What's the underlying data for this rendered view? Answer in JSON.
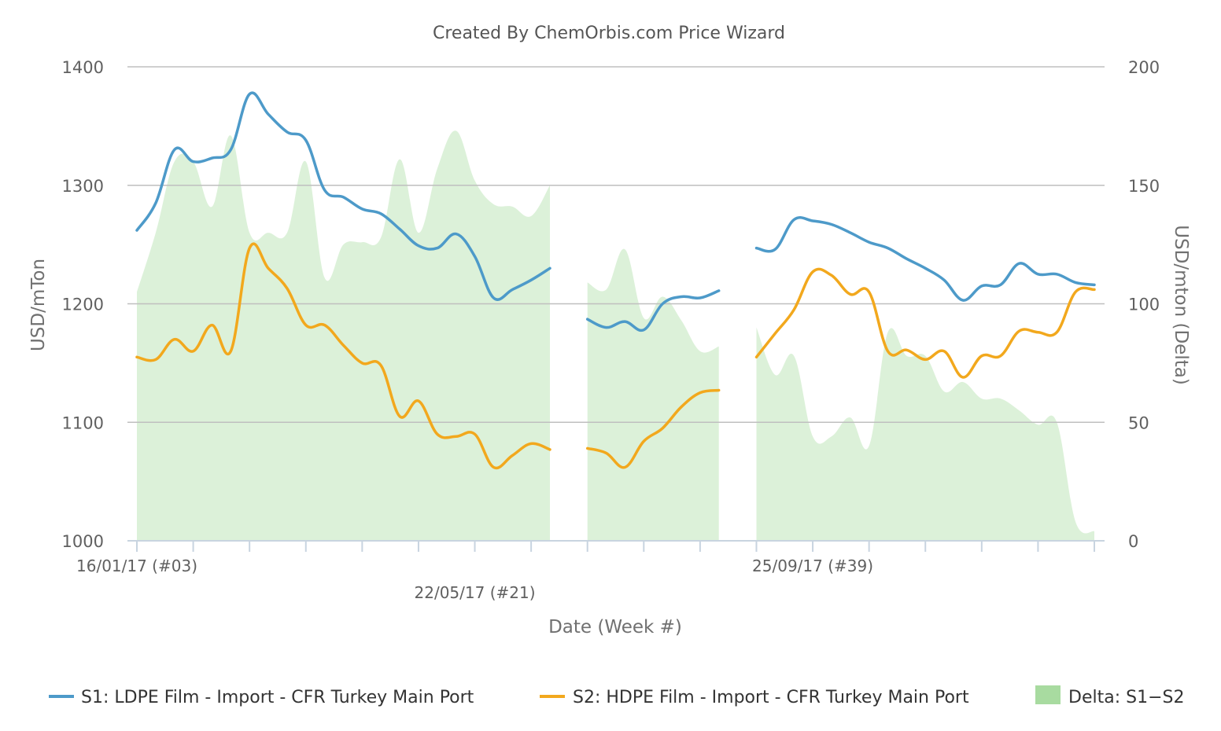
{
  "chart_data": {
    "type": "line",
    "title": "Created By ChemOrbis.com Price Wizard",
    "xlabel": "Date (Week #)",
    "ylabel_left": "USD/mTon",
    "ylabel_right": "USD/mton (Delta)",
    "ylim_left": [
      1000,
      1400
    ],
    "ylim_right": [
      0,
      200
    ],
    "yticks_left": [
      "1000",
      "1100",
      "1200",
      "1300",
      "1400"
    ],
    "yticks_right": [
      "0",
      "50",
      "100",
      "150",
      "200"
    ],
    "xlim": [
      0,
      51
    ],
    "x_tick_labels": [
      {
        "x": 0,
        "label": "16/01/17 (#03)",
        "row": 0
      },
      {
        "x": 18,
        "label": "22/05/17 (#21)",
        "row": 1
      },
      {
        "x": 36,
        "label": "25/09/17 (#39)",
        "row": 0
      }
    ],
    "grid": true,
    "legend_position": "bottom",
    "colors": {
      "s1": "#4d9ac9",
      "s2": "#f2a81d",
      "delta": "#a8dba0",
      "grid": "#bfbfbf",
      "axis": "#c8d4e0"
    },
    "series": [
      {
        "name": "S1: LDPE Film - Import - CFR Turkey Main Port",
        "kind": "line",
        "axis": "left",
        "segments": [
          [
            [
              0,
              1262
            ],
            [
              1,
              1285
            ],
            [
              2,
              1330
            ],
            [
              3,
              1320
            ],
            [
              4,
              1323
            ],
            [
              5,
              1330
            ],
            [
              6,
              1377
            ],
            [
              7,
              1360
            ],
            [
              8,
              1345
            ],
            [
              9,
              1338
            ],
            [
              10,
              1296
            ],
            [
              11,
              1290
            ],
            [
              12,
              1280
            ],
            [
              13,
              1276
            ],
            [
              14,
              1263
            ],
            [
              15,
              1249
            ],
            [
              16,
              1247
            ],
            [
              17,
              1259
            ],
            [
              18,
              1240
            ],
            [
              19,
              1205
            ],
            [
              20,
              1212
            ],
            [
              21,
              1220
            ],
            [
              22,
              1230
            ]
          ],
          [
            [
              24,
              1187
            ],
            [
              25,
              1180
            ],
            [
              26,
              1185
            ],
            [
              27,
              1178
            ],
            [
              28,
              1200
            ],
            [
              29,
              1206
            ],
            [
              30,
              1205
            ],
            [
              31,
              1211
            ]
          ],
          [
            [
              33,
              1247
            ],
            [
              34,
              1246
            ],
            [
              35,
              1271
            ],
            [
              36,
              1270
            ],
            [
              37,
              1267
            ],
            [
              38,
              1260
            ],
            [
              39,
              1252
            ],
            [
              40,
              1247
            ],
            [
              41,
              1238
            ],
            [
              42,
              1230
            ],
            [
              43,
              1220
            ],
            [
              44,
              1203
            ],
            [
              45,
              1215
            ],
            [
              46,
              1216
            ],
            [
              47,
              1234
            ],
            [
              48,
              1225
            ],
            [
              49,
              1225
            ],
            [
              50,
              1218
            ],
            [
              51,
              1216
            ]
          ]
        ]
      },
      {
        "name": "S2: HDPE Film - Import - CFR Turkey Main Port",
        "kind": "line",
        "axis": "left",
        "segments": [
          [
            [
              0,
              1155
            ],
            [
              1,
              1153
            ],
            [
              2,
              1170
            ],
            [
              3,
              1160
            ],
            [
              4,
              1182
            ],
            [
              5,
              1160
            ],
            [
              6,
              1247
            ],
            [
              7,
              1230
            ],
            [
              8,
              1213
            ],
            [
              9,
              1182
            ],
            [
              10,
              1182
            ],
            [
              11,
              1165
            ],
            [
              12,
              1150
            ],
            [
              13,
              1148
            ],
            [
              14,
              1105
            ],
            [
              15,
              1118
            ],
            [
              16,
              1090
            ],
            [
              17,
              1088
            ],
            [
              18,
              1090
            ],
            [
              19,
              1062
            ],
            [
              20,
              1072
            ],
            [
              21,
              1082
            ],
            [
              22,
              1077
            ]
          ],
          [
            [
              24,
              1078
            ],
            [
              25,
              1074
            ],
            [
              26,
              1062
            ],
            [
              27,
              1084
            ],
            [
              28,
              1095
            ],
            [
              29,
              1113
            ],
            [
              30,
              1125
            ],
            [
              31,
              1127
            ]
          ],
          [
            [
              33,
              1155
            ],
            [
              34,
              1175
            ],
            [
              35,
              1195
            ],
            [
              36,
              1227
            ],
            [
              37,
              1224
            ],
            [
              38,
              1208
            ],
            [
              39,
              1210
            ],
            [
              40,
              1160
            ],
            [
              41,
              1161
            ],
            [
              42,
              1153
            ],
            [
              43,
              1160
            ],
            [
              44,
              1138
            ],
            [
              45,
              1156
            ],
            [
              46,
              1156
            ],
            [
              47,
              1177
            ],
            [
              48,
              1176
            ],
            [
              49,
              1176
            ],
            [
              50,
              1210
            ],
            [
              51,
              1212
            ]
          ]
        ]
      },
      {
        "name": "Delta: S1−S2",
        "kind": "area",
        "axis": "right",
        "segments": [
          [
            [
              0,
              105
            ],
            [
              1,
              130
            ],
            [
              2,
              160
            ],
            [
              3,
              160
            ],
            [
              4,
              141
            ],
            [
              5,
              171
            ],
            [
              6,
              130
            ],
            [
              7,
              130
            ],
            [
              8,
              130
            ],
            [
              9,
              160
            ],
            [
              10,
              111
            ],
            [
              11,
              125
            ],
            [
              12,
              126
            ],
            [
              13,
              128
            ],
            [
              14,
              161
            ],
            [
              15,
              130
            ],
            [
              16,
              157
            ],
            [
              17,
              173
            ],
            [
              18,
              152
            ],
            [
              19,
              142
            ],
            [
              20,
              141
            ],
            [
              21,
              137
            ],
            [
              22,
              150
            ]
          ],
          [
            [
              24,
              109
            ],
            [
              25,
              106
            ],
            [
              26,
              123
            ],
            [
              27,
              94
            ],
            [
              28,
              103
            ],
            [
              29,
              93
            ],
            [
              30,
              80
            ],
            [
              31,
              82
            ]
          ],
          [
            [
              33,
              90
            ],
            [
              34,
              70
            ],
            [
              35,
              78
            ],
            [
              36,
              44
            ],
            [
              37,
              44
            ],
            [
              38,
              52
            ],
            [
              39,
              40
            ],
            [
              40,
              88
            ],
            [
              41,
              78
            ],
            [
              42,
              78
            ],
            [
              43,
              63
            ],
            [
              44,
              67
            ],
            [
              45,
              60
            ],
            [
              46,
              60
            ],
            [
              47,
              55
            ],
            [
              48,
              49
            ],
            [
              49,
              50
            ],
            [
              50,
              8
            ],
            [
              51,
              4
            ]
          ]
        ]
      }
    ]
  }
}
